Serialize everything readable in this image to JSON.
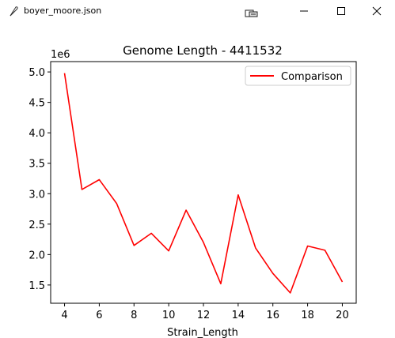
{
  "window": {
    "title": "boyer_moore.json",
    "icons": {
      "app": "feather-icon",
      "toolbar": "configure-subplots-icon",
      "minimize": "minimize-icon",
      "maximize": "maximize-icon",
      "close": "close-icon"
    }
  },
  "chart_data": {
    "type": "line",
    "title": "Genome Length - 4411532",
    "xlabel": "Strain_Length",
    "ylabel": "",
    "y_offset_label": "1e6",
    "x": [
      4,
      5,
      6,
      7,
      8,
      9,
      10,
      11,
      12,
      13,
      14,
      15,
      16,
      17,
      18,
      19,
      20
    ],
    "series": [
      {
        "name": "Comparison",
        "color": "#ff0000",
        "values": [
          4980000,
          3070000,
          3230000,
          2840000,
          2150000,
          2350000,
          2060000,
          2730000,
          2200000,
          1520000,
          2980000,
          2110000,
          1690000,
          1370000,
          2140000,
          2070000,
          1550000
        ]
      }
    ],
    "xlim": [
      3.2,
      20.8
    ],
    "ylim": [
      1200000,
      5170000
    ],
    "xticks": [
      4,
      6,
      8,
      10,
      12,
      14,
      16,
      18,
      20
    ],
    "xtick_labels": [
      "4",
      "6",
      "8",
      "10",
      "12",
      "14",
      "16",
      "18",
      "20"
    ],
    "yticks": [
      1500000,
      2000000,
      2500000,
      3000000,
      3500000,
      4000000,
      4500000,
      5000000
    ],
    "ytick_labels": [
      "1.5",
      "2.0",
      "2.5",
      "3.0",
      "3.5",
      "4.0",
      "4.5",
      "5.0"
    ],
    "grid": false,
    "legend_position": "top-right"
  }
}
